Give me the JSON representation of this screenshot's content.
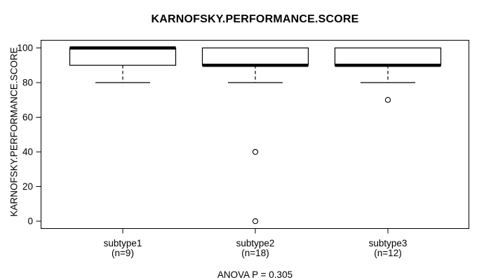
{
  "chart_data": {
    "type": "boxplot",
    "title": "KARNOFSKY.PERFORMANCE.SCORE",
    "ylabel": "KARNOFSKY.PERFORMANCE.SCORE",
    "footer": "ANOVA P = 0.305",
    "ylim": [
      0,
      100
    ],
    "yticks": [
      0,
      20,
      40,
      60,
      80,
      100
    ],
    "grid": false,
    "colors": {
      "line": "#000000",
      "box_fill": "#ffffff",
      "background": "#ffffff"
    },
    "groups": [
      {
        "label": "subtype1",
        "sublabel": "(n=9)",
        "q1": 90,
        "median": 100,
        "q3": 100,
        "whisker_low": 80,
        "whisker_high": 100,
        "outliers": []
      },
      {
        "label": "subtype2",
        "sublabel": "(n=18)",
        "q1": 90,
        "median": 90,
        "q3": 100,
        "whisker_low": 80,
        "whisker_high": 100,
        "outliers": [
          40,
          0
        ]
      },
      {
        "label": "subtype3",
        "sublabel": "(n=12)",
        "q1": 90,
        "median": 90,
        "q3": 100,
        "whisker_low": 80,
        "whisker_high": 100,
        "outliers": [
          70
        ]
      }
    ]
  }
}
